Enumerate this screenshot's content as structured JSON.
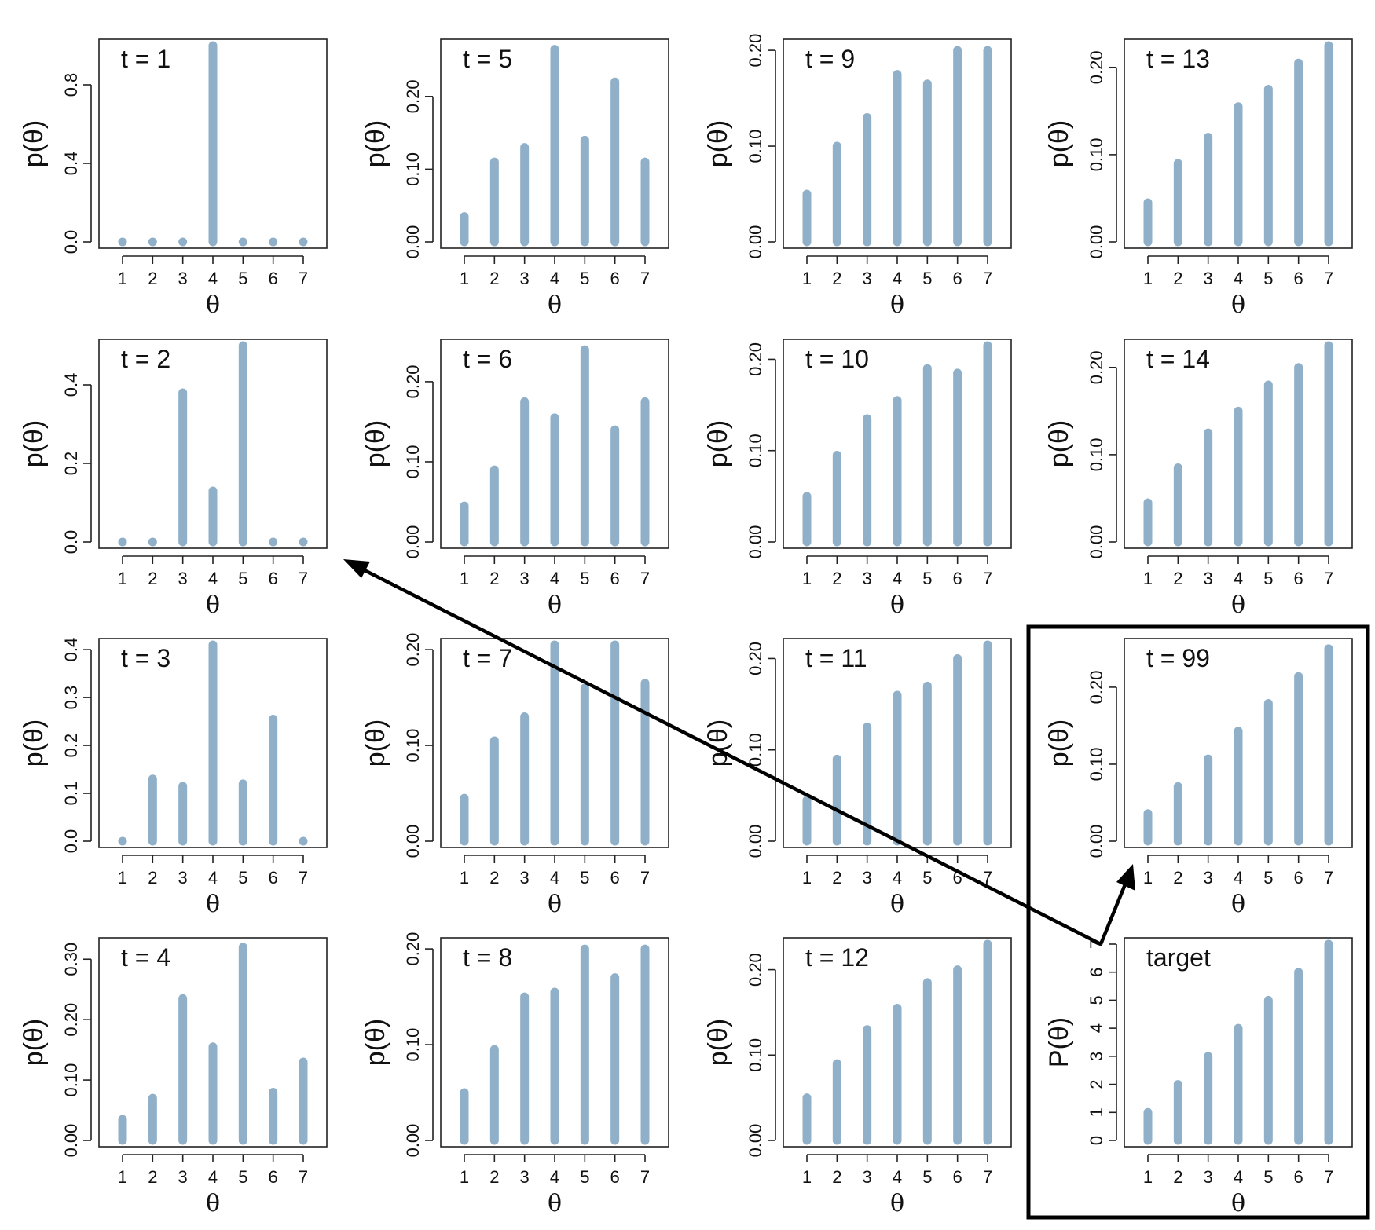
{
  "chart_data": {
    "type": "bar",
    "bar_color": "#8fb0c8",
    "x_categories": [
      "1",
      "2",
      "3",
      "4",
      "5",
      "6",
      "7"
    ],
    "xlabel": "θ",
    "panels": [
      {
        "title": "t = 1",
        "ylabel": "p(θ)",
        "ylim": [
          0,
          1.0
        ],
        "yticks": [
          "0.0",
          "0.4",
          "0.8"
        ],
        "ytick_values": [
          0,
          0.4,
          0.8
        ],
        "values": [
          0,
          0,
          0,
          1.0,
          0,
          0,
          0
        ]
      },
      {
        "title": "t = 2",
        "ylabel": "p(θ)",
        "ylim": [
          0,
          0.5
        ],
        "yticks": [
          "0.0",
          "0.2",
          "0.4"
        ],
        "ytick_values": [
          0,
          0.2,
          0.4
        ],
        "values": [
          0,
          0,
          0.38,
          0.13,
          0.5,
          0,
          0
        ]
      },
      {
        "title": "t = 3",
        "ylabel": "p(θ)",
        "ylim": [
          0,
          0.41
        ],
        "yticks": [
          "0.0",
          "0.1",
          "0.2",
          "0.3",
          "0.4"
        ],
        "ytick_values": [
          0,
          0.1,
          0.2,
          0.3,
          0.4
        ],
        "values": [
          0,
          0.13,
          0.115,
          0.41,
          0.12,
          0.255,
          0
        ]
      },
      {
        "title": "t = 4",
        "ylabel": "p(θ)",
        "ylim": [
          0,
          0.325
        ],
        "yticks": [
          "0.00",
          "0.10",
          "0.20",
          "0.30"
        ],
        "ytick_values": [
          0,
          0.1,
          0.2,
          0.3
        ],
        "values": [
          0.035,
          0.07,
          0.235,
          0.155,
          0.32,
          0.08,
          0.13
        ]
      },
      {
        "title": "t = 5",
        "ylabel": "p(θ)",
        "ylim": [
          0,
          0.27
        ],
        "yticks": [
          "0.00",
          "0.10",
          "0.20"
        ],
        "ytick_values": [
          0,
          0.1,
          0.2
        ],
        "values": [
          0.035,
          0.11,
          0.13,
          0.265,
          0.14,
          0.22,
          0.11
        ]
      },
      {
        "title": "t = 6",
        "ylabel": "p(θ)",
        "ylim": [
          0,
          0.245
        ],
        "yticks": [
          "0.00",
          "0.10",
          "0.20"
        ],
        "ytick_values": [
          0,
          0.1,
          0.2
        ],
        "values": [
          0.045,
          0.09,
          0.175,
          0.155,
          0.24,
          0.14,
          0.175
        ]
      },
      {
        "title": "t = 7",
        "ylabel": "p(θ)",
        "ylim": [
          0,
          0.205
        ],
        "yticks": [
          "0.00",
          "0.10",
          "0.20"
        ],
        "ytick_values": [
          0,
          0.1,
          0.2
        ],
        "values": [
          0.045,
          0.105,
          0.13,
          0.205,
          0.16,
          0.205,
          0.165
        ]
      },
      {
        "title": "t = 8",
        "ylabel": "p(θ)",
        "ylim": [
          0,
          0.205
        ],
        "yticks": [
          "0.00",
          "0.10",
          "0.20"
        ],
        "ytick_values": [
          0,
          0.1,
          0.2
        ],
        "values": [
          0.05,
          0.095,
          0.15,
          0.155,
          0.2,
          0.17,
          0.2
        ]
      },
      {
        "title": "t = 9",
        "ylabel": "p(θ)",
        "ylim": [
          0,
          0.205
        ],
        "yticks": [
          "0.00",
          "0.10",
          "0.20"
        ],
        "ytick_values": [
          0,
          0.1,
          0.2
        ],
        "values": [
          0.05,
          0.1,
          0.13,
          0.175,
          0.165,
          0.2,
          0.2
        ]
      },
      {
        "title": "t = 10",
        "ylabel": "p(θ)",
        "ylim": [
          0,
          0.215
        ],
        "yticks": [
          "0.00",
          "0.10",
          "0.20"
        ],
        "ytick_values": [
          0,
          0.1,
          0.2
        ],
        "values": [
          0.05,
          0.095,
          0.135,
          0.155,
          0.19,
          0.185,
          0.215
        ]
      },
      {
        "title": "t = 11",
        "ylabel": "p(θ)",
        "ylim": [
          0,
          0.215
        ],
        "yticks": [
          "0.00",
          "0.10",
          "0.20"
        ],
        "ytick_values": [
          0,
          0.1,
          0.2
        ],
        "values": [
          0.045,
          0.09,
          0.125,
          0.16,
          0.17,
          0.2,
          0.215
        ]
      },
      {
        "title": "t = 12",
        "ylabel": "p(θ)",
        "ylim": [
          0,
          0.23
        ],
        "yticks": [
          "0.00",
          "0.10",
          "0.20"
        ],
        "ytick_values": [
          0,
          0.1,
          0.2
        ],
        "values": [
          0.05,
          0.09,
          0.13,
          0.155,
          0.185,
          0.2,
          0.23
        ]
      },
      {
        "title": "t = 13",
        "ylabel": "p(θ)",
        "ylim": [
          0,
          0.225
        ],
        "yticks": [
          "0.00",
          "0.10",
          "0.20"
        ],
        "ytick_values": [
          0,
          0.1,
          0.2
        ],
        "values": [
          0.045,
          0.09,
          0.12,
          0.155,
          0.175,
          0.205,
          0.225
        ]
      },
      {
        "title": "t = 14",
        "ylabel": "p(θ)",
        "ylim": [
          0,
          0.225
        ],
        "yticks": [
          "0.00",
          "0.10",
          "0.20"
        ],
        "ytick_values": [
          0,
          0.1,
          0.2
        ],
        "values": [
          0.045,
          0.085,
          0.125,
          0.15,
          0.18,
          0.2,
          0.225
        ]
      },
      {
        "title": "t = 99",
        "ylabel": "p(θ)",
        "ylim": [
          0,
          0.255
        ],
        "yticks": [
          "0.00",
          "0.10",
          "0.20"
        ],
        "ytick_values": [
          0,
          0.1,
          0.2
        ],
        "values": [
          0.036,
          0.071,
          0.107,
          0.143,
          0.179,
          0.214,
          0.25
        ]
      },
      {
        "title": "target",
        "ylabel": "P(θ)",
        "ylim": [
          0,
          7
        ],
        "yticks": [
          "0",
          "1",
          "2",
          "3",
          "4",
          "5",
          "6",
          "7"
        ],
        "ytick_values": [
          0,
          1,
          2,
          3,
          4,
          5,
          6,
          7
        ],
        "values": [
          1,
          2,
          3,
          4,
          5,
          6,
          7
        ]
      }
    ]
  }
}
